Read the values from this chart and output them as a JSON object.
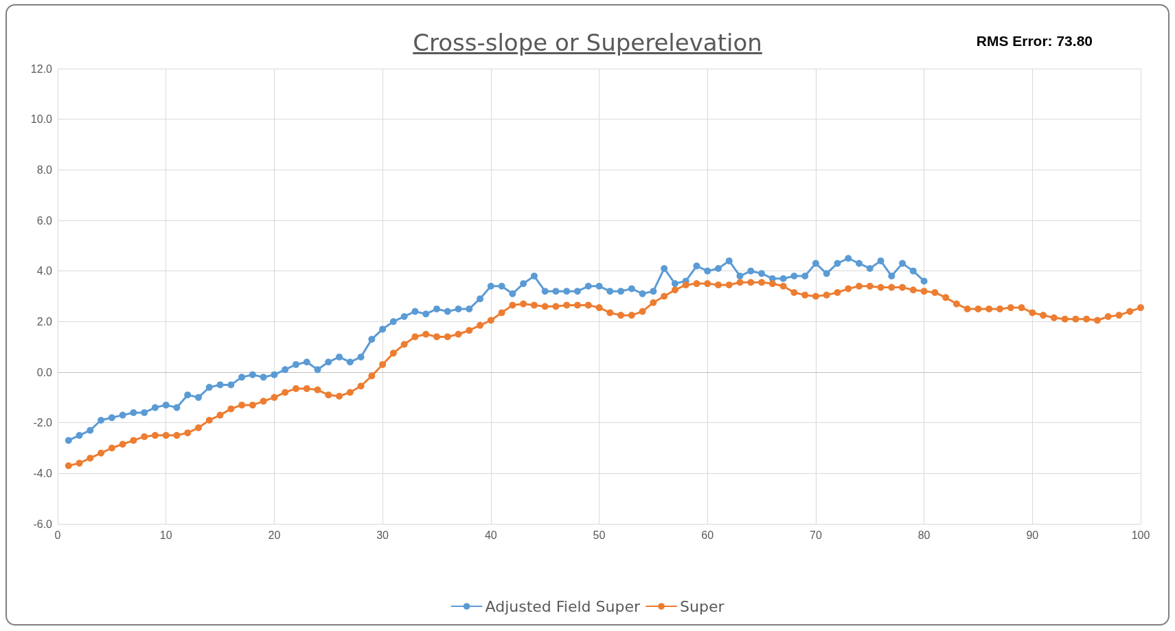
{
  "chart_data": {
    "type": "line",
    "title": "Cross-slope or Superelevation",
    "annotations": [
      "RMS Error: 73.80"
    ],
    "x": [
      1,
      2,
      3,
      4,
      5,
      6,
      7,
      8,
      9,
      10,
      11,
      12,
      13,
      14,
      15,
      16,
      17,
      18,
      19,
      20,
      21,
      22,
      23,
      24,
      25,
      26,
      27,
      28,
      29,
      30,
      31,
      32,
      33,
      34,
      35,
      36,
      37,
      38,
      39,
      40,
      41,
      42,
      43,
      44,
      45,
      46,
      47,
      48,
      49,
      50,
      51,
      52,
      53,
      54,
      55,
      56,
      57,
      58,
      59,
      60,
      61,
      62,
      63,
      64,
      65,
      66,
      67,
      68,
      69,
      70,
      71,
      72,
      73,
      74,
      75,
      76,
      77,
      78,
      79,
      80,
      81,
      82,
      83,
      84,
      85,
      86,
      87,
      88,
      89,
      90,
      91,
      92,
      93,
      94,
      95,
      96,
      97,
      98,
      99,
      100
    ],
    "series": [
      {
        "name": "Adjusted Field Super",
        "color": "#5b9bd5",
        "x": [
          1,
          2,
          3,
          4,
          5,
          6,
          7,
          8,
          9,
          10,
          11,
          12,
          13,
          14,
          15,
          16,
          17,
          18,
          19,
          20,
          21,
          22,
          23,
          24,
          25,
          26,
          27,
          28,
          29,
          30,
          31,
          32,
          33,
          34,
          35,
          36,
          37,
          38,
          39,
          40,
          41,
          42,
          43,
          44,
          45,
          46,
          47,
          48,
          49,
          50,
          51,
          52,
          53,
          54,
          55,
          56,
          57,
          58,
          59,
          60,
          61,
          62,
          63,
          64,
          65,
          66,
          67,
          68,
          69,
          70,
          71,
          72,
          73,
          74,
          75,
          76,
          77,
          78,
          79,
          80
        ],
        "values": [
          -2.7,
          -2.5,
          -2.3,
          -1.9,
          -1.8,
          -1.7,
          -1.6,
          -1.6,
          -1.4,
          -1.3,
          -1.4,
          -0.9,
          -1.0,
          -0.6,
          -0.5,
          -0.5,
          -0.2,
          -0.1,
          -0.2,
          -0.1,
          0.1,
          0.3,
          0.4,
          0.1,
          0.4,
          0.6,
          0.4,
          0.6,
          1.3,
          1.7,
          2.0,
          2.2,
          2.4,
          2.3,
          2.5,
          2.4,
          2.5,
          2.5,
          2.9,
          3.4,
          3.4,
          3.1,
          3.5,
          3.8,
          3.2,
          3.2,
          3.2,
          3.2,
          3.4,
          3.4,
          3.2,
          3.2,
          3.3,
          3.1,
          3.2,
          4.1,
          3.5,
          3.6,
          4.2,
          4.0,
          4.1,
          4.4,
          3.8,
          4.0,
          3.9,
          3.7,
          3.7,
          3.8,
          3.8,
          4.3,
          3.9,
          4.3,
          4.5,
          4.3,
          4.1,
          4.4,
          3.8,
          4.3,
          4.0,
          3.6
        ]
      },
      {
        "name": "Super",
        "color": "#ed7d31",
        "values": [
          -3.7,
          -3.6,
          -3.4,
          -3.2,
          -3.0,
          -2.85,
          -2.7,
          -2.55,
          -2.5,
          -2.5,
          -2.5,
          -2.4,
          -2.2,
          -1.9,
          -1.7,
          -1.45,
          -1.3,
          -1.3,
          -1.15,
          -1.0,
          -0.8,
          -0.65,
          -0.65,
          -0.7,
          -0.9,
          -0.95,
          -0.8,
          -0.55,
          -0.15,
          0.3,
          0.75,
          1.1,
          1.4,
          1.5,
          1.4,
          1.4,
          1.5,
          1.65,
          1.85,
          2.05,
          2.35,
          2.65,
          2.7,
          2.65,
          2.6,
          2.6,
          2.65,
          2.65,
          2.65,
          2.55,
          2.35,
          2.25,
          2.25,
          2.4,
          2.75,
          3.0,
          3.25,
          3.45,
          3.5,
          3.5,
          3.45,
          3.45,
          3.55,
          3.55,
          3.55,
          3.5,
          3.4,
          3.15,
          3.05,
          3.0,
          3.05,
          3.15,
          3.3,
          3.4,
          3.4,
          3.35,
          3.35,
          3.35,
          3.25,
          3.2,
          3.15,
          2.95,
          2.7,
          2.5,
          2.5,
          2.5,
          2.5,
          2.55,
          2.55,
          2.35,
          2.25,
          2.15,
          2.1,
          2.1,
          2.1,
          2.05,
          2.2,
          2.25,
          2.4,
          2.55
        ]
      }
    ],
    "xlim": [
      0,
      100
    ],
    "xticks": [
      0,
      10,
      20,
      30,
      40,
      50,
      60,
      70,
      80,
      90,
      100
    ],
    "ylim": [
      -6,
      12
    ],
    "yticks": [
      {
        "value": -6,
        "label": "-6.0"
      },
      {
        "value": -4,
        "label": "-4.0"
      },
      {
        "value": -2,
        "label": "-2.0"
      },
      {
        "value": 0,
        "label": "0.0"
      },
      {
        "value": 2,
        "label": "2.0"
      },
      {
        "value": 4,
        "label": "4.0"
      },
      {
        "value": 6,
        "label": "6.0"
      },
      {
        "value": 8,
        "label": "8.0"
      },
      {
        "value": 10,
        "label": "10.0"
      },
      {
        "value": 12,
        "label": "12.0"
      }
    ],
    "grid": true,
    "legend": "bottom",
    "marker": "circle",
    "line_style": "solid"
  }
}
